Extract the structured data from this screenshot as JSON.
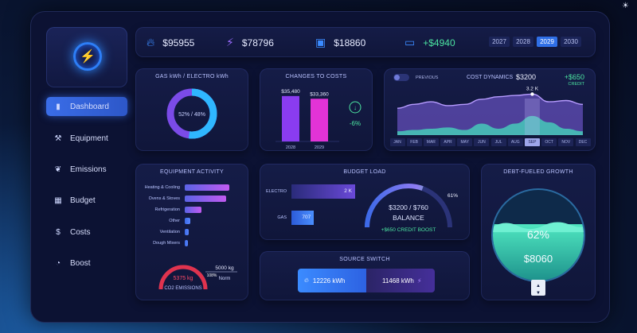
{
  "corner_icon": "sun-icon",
  "sidebar": {
    "logo_icon": "lightning-icon",
    "items": [
      {
        "label": "Dashboard",
        "icon": "bar-chart-icon",
        "active": true
      },
      {
        "label": "Equipment",
        "icon": "wrench-icon"
      },
      {
        "label": "Emissions",
        "icon": "leaf-icon"
      },
      {
        "label": "Budget",
        "icon": "calculator-icon"
      },
      {
        "label": "Costs",
        "icon": "coin-icon"
      },
      {
        "label": "Boost",
        "icon": "gauge-icon"
      }
    ]
  },
  "topbar": {
    "gas_value": "$95955",
    "electro_value": "$78796",
    "wallet_value": "$18860",
    "battery_value": "+$4940",
    "years": [
      "2027",
      "2028",
      "2029",
      "2030"
    ],
    "selected_year": "2029"
  },
  "gas_electro": {
    "title": "GAS kWh / ELECTRO kWh",
    "center_text": "52% / 48%"
  },
  "changes": {
    "title": "CHANGES TO COSTS",
    "change": "-6%",
    "chart_data": {
      "type": "bar",
      "categories": [
        "2028",
        "2029"
      ],
      "values": [
        35480,
        33360
      ],
      "value_labels": [
        "$35,480",
        "$33,360"
      ]
    }
  },
  "cost_dynamics": {
    "toggle_label": "PREVIOUS",
    "title": "COST DYNAMICS",
    "value": "$3200",
    "credit_value": "+$650",
    "credit_label": "CREDIT",
    "peak_label": "3.2 K",
    "selected_month": "SEP",
    "chart_data": {
      "type": "area",
      "x": [
        "JAN",
        "FEB",
        "MAR",
        "APR",
        "MAY",
        "JUN",
        "JUL",
        "AUG",
        "SEP",
        "OCT",
        "NOV",
        "DEC"
      ],
      "series": [
        {
          "values": [
            2.1,
            2.4,
            2.6,
            2.3,
            2.4,
            2.8,
            3.0,
            3.1,
            3.2,
            2.6,
            2.7,
            2.4
          ]
        },
        {
          "values": [
            0.3,
            0.4,
            0.5,
            0.6,
            0.4,
            0.9,
            0.5,
            0.9,
            1.5,
            1.0,
            0.5,
            0.3
          ]
        }
      ]
    }
  },
  "equipment": {
    "title": "EQUIPMENT ACTIVITY",
    "chart_data": {
      "type": "bar",
      "categories": [
        "Heating & Cooling",
        "Ovens & Stoves",
        "Refrigeration",
        "Other",
        "Ventilation",
        "Dough Mixers"
      ],
      "values": [
        100,
        93,
        37,
        13,
        9,
        7
      ]
    },
    "co2_value": "5375 kg",
    "co2_label": "CO2 EMISSIONS",
    "norm_value": "5000 kg",
    "norm_label": "Norm",
    "percent": "108%"
  },
  "budget": {
    "title": "BUDGET LOAD",
    "chart_data": {
      "type": "bar",
      "categories": [
        "ELECTRO",
        "GAS"
      ],
      "values": [
        2000,
        707
      ],
      "value_labels": [
        "2 K",
        "707"
      ]
    },
    "gauge_percent": "61%",
    "gauge_value": 0.61,
    "balance_amount": "$3200 / $760",
    "balance_label": "BALANCE",
    "boost_label": "+$650 CREDIT BOOST"
  },
  "source_switch": {
    "title": "SOURCE SWITCH",
    "gas_value": "12226 kWh",
    "electro_value": "11468 kWh"
  },
  "debt": {
    "title": "DEBT-FUELED GROWTH",
    "percent": "62%",
    "amount": "$8060",
    "fill": 0.62
  }
}
